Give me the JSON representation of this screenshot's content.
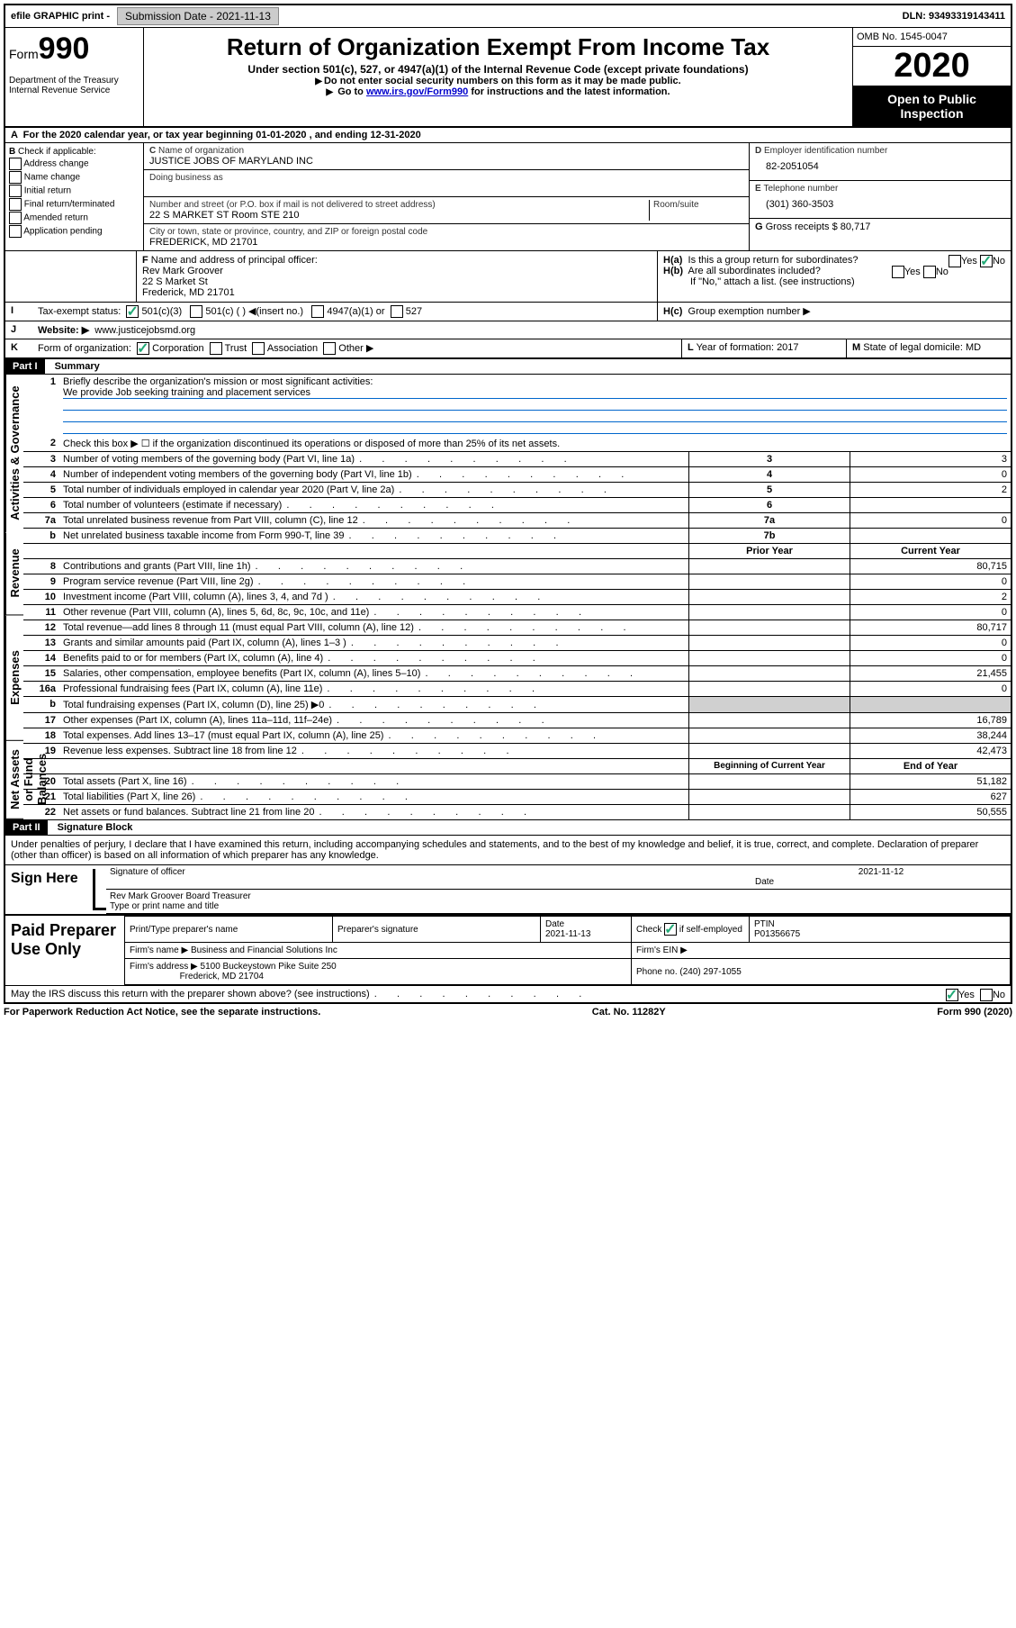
{
  "topbar": {
    "efile": "efile GRAPHIC print -",
    "submission_label": "Submission Date - 2021-11-13",
    "dln": "DLN: 93493319143411"
  },
  "header": {
    "form_label": "Form",
    "form_number": "990",
    "dept": "Department of the Treasury\nInternal Revenue Service",
    "title": "Return of Organization Exempt From Income Tax",
    "subtitle": "Under section 501(c), 527, or 4947(a)(1) of the Internal Revenue Code (except private foundations)",
    "note1": "Do not enter social security numbers on this form as it may be made public.",
    "note2_pre": "Go to ",
    "note2_link": "www.irs.gov/Form990",
    "note2_post": " for instructions and the latest information.",
    "omb": "OMB No. 1545-0047",
    "year": "2020",
    "inspect": "Open to Public Inspection"
  },
  "A": {
    "text": "For the 2020 calendar year, or tax year beginning 01-01-2020    , and ending 12-31-2020"
  },
  "B": {
    "label": "Check if applicable:",
    "items": [
      "Address change",
      "Name change",
      "Initial return",
      "Final return/terminated",
      "Amended return",
      "Application pending"
    ]
  },
  "C": {
    "name_label": "Name of organization",
    "name": "JUSTICE JOBS OF MARYLAND INC",
    "dba_label": "Doing business as",
    "addr_label": "Number and street (or P.O. box if mail is not delivered to street address)",
    "room_label": "Room/suite",
    "addr": "22 S MARKET ST Room STE 210",
    "city_label": "City or town, state or province, country, and ZIP or foreign postal code",
    "city": "FREDERICK, MD  21701"
  },
  "D": {
    "label": "Employer identification number",
    "value": "82-2051054"
  },
  "E": {
    "label": "Telephone number",
    "value": "(301) 360-3503"
  },
  "G": {
    "label": "Gross receipts $",
    "value": "80,717"
  },
  "F": {
    "label": "Name and address of principal officer:",
    "name": "Rev Mark Groover",
    "addr1": "22 S Market St",
    "addr2": "Frederick, MD  21701"
  },
  "H": {
    "a": "Is this a group return for subordinates?",
    "b": "Are all subordinates included?",
    "b_note": "If \"No,\" attach a list. (see instructions)",
    "c": "Group exemption number ▶"
  },
  "I": {
    "label": "Tax-exempt status:",
    "opts": [
      "501(c)(3)",
      "501(c) (  ) ◀(insert no.)",
      "4947(a)(1) or",
      "527"
    ]
  },
  "J": {
    "label": "Website: ▶",
    "value": "www.justicejobsmd.org"
  },
  "K": {
    "label": "Form of organization:",
    "opts": [
      "Corporation",
      "Trust",
      "Association",
      "Other ▶"
    ]
  },
  "L": {
    "label": "Year of formation:",
    "value": "2017"
  },
  "M": {
    "label": "State of legal domicile:",
    "value": "MD"
  },
  "part1": {
    "header": "Part I",
    "title": "Summary",
    "line1_label": "Briefly describe the organization's mission or most significant activities:",
    "line1_value": "We provide Job seeking training and placement services",
    "line2": "Check this box ▶ ☐  if the organization discontinued its operations or disposed of more than 25% of its net assets.",
    "lines_gov": [
      {
        "n": "3",
        "t": "Number of voting members of the governing body (Part VI, line 1a)",
        "k": "3",
        "v": "3"
      },
      {
        "n": "4",
        "t": "Number of independent voting members of the governing body (Part VI, line 1b)",
        "k": "4",
        "v": "0"
      },
      {
        "n": "5",
        "t": "Total number of individuals employed in calendar year 2020 (Part V, line 2a)",
        "k": "5",
        "v": "2"
      },
      {
        "n": "6",
        "t": "Total number of volunteers (estimate if necessary)",
        "k": "6",
        "v": ""
      },
      {
        "n": "7a",
        "t": "Total unrelated business revenue from Part VIII, column (C), line 12",
        "k": "7a",
        "v": "0"
      },
      {
        "n": "b",
        "t": "Net unrelated business taxable income from Form 990-T, line 39",
        "k": "7b",
        "v": ""
      }
    ],
    "col_prior": "Prior Year",
    "col_current": "Current Year",
    "lines_rev": [
      {
        "n": "8",
        "t": "Contributions and grants (Part VIII, line 1h)",
        "p": "",
        "c": "80,715"
      },
      {
        "n": "9",
        "t": "Program service revenue (Part VIII, line 2g)",
        "p": "",
        "c": "0"
      },
      {
        "n": "10",
        "t": "Investment income (Part VIII, column (A), lines 3, 4, and 7d )",
        "p": "",
        "c": "2"
      },
      {
        "n": "11",
        "t": "Other revenue (Part VIII, column (A), lines 5, 6d, 8c, 9c, 10c, and 11e)",
        "p": "",
        "c": "0"
      },
      {
        "n": "12",
        "t": "Total revenue—add lines 8 through 11 (must equal Part VIII, column (A), line 12)",
        "p": "",
        "c": "80,717"
      }
    ],
    "lines_exp": [
      {
        "n": "13",
        "t": "Grants and similar amounts paid (Part IX, column (A), lines 1–3 )",
        "p": "",
        "c": "0"
      },
      {
        "n": "14",
        "t": "Benefits paid to or for members (Part IX, column (A), line 4)",
        "p": "",
        "c": "0"
      },
      {
        "n": "15",
        "t": "Salaries, other compensation, employee benefits (Part IX, column (A), lines 5–10)",
        "p": "",
        "c": "21,455"
      },
      {
        "n": "16a",
        "t": "Professional fundraising fees (Part IX, column (A), line 11e)",
        "p": "",
        "c": "0"
      },
      {
        "n": "b",
        "t": "Total fundraising expenses (Part IX, column (D), line 25) ▶0",
        "p": "shade",
        "c": "shade"
      },
      {
        "n": "17",
        "t": "Other expenses (Part IX, column (A), lines 11a–11d, 11f–24e)",
        "p": "",
        "c": "16,789"
      },
      {
        "n": "18",
        "t": "Total expenses. Add lines 13–17 (must equal Part IX, column (A), line 25)",
        "p": "",
        "c": "38,244"
      },
      {
        "n": "19",
        "t": "Revenue less expenses. Subtract line 18 from line 12",
        "p": "",
        "c": "42,473"
      }
    ],
    "col_begin": "Beginning of Current Year",
    "col_end": "End of Year",
    "lines_net": [
      {
        "n": "20",
        "t": "Total assets (Part X, line 16)",
        "p": "",
        "c": "51,182"
      },
      {
        "n": "21",
        "t": "Total liabilities (Part X, line 26)",
        "p": "",
        "c": "627"
      },
      {
        "n": "22",
        "t": "Net assets or fund balances. Subtract line 21 from line 20",
        "p": "",
        "c": "50,555"
      }
    ],
    "vlabels": {
      "gov": "Activities & Governance",
      "rev": "Revenue",
      "exp": "Expenses",
      "net": "Net Assets or Fund Balances"
    }
  },
  "part2": {
    "header": "Part II",
    "title": "Signature Block",
    "penalty": "Under penalties of perjury, I declare that I have examined this return, including accompanying schedules and statements, and to the best of my knowledge and belief, it is true, correct, and complete. Declaration of preparer (other than officer) is based on all information of which preparer has any knowledge."
  },
  "sign": {
    "label": "Sign Here",
    "sig_label": "Signature of officer",
    "date_label": "Date",
    "date": "2021-11-12",
    "name": "Rev Mark Groover  Board Treasurer",
    "name_label": "Type or print name and title"
  },
  "paid": {
    "label": "Paid Preparer Use Only",
    "h_name": "Print/Type preparer's name",
    "h_sig": "Preparer's signature",
    "h_date": "Date",
    "date": "2021-11-13",
    "h_self": "Check ☑ if self-employed",
    "h_ptin": "PTIN",
    "ptin": "P01356675",
    "firm_label": "Firm's name    ▶",
    "firm": "Business and Financial Solutions Inc",
    "ein_label": "Firm's EIN ▶",
    "addr_label": "Firm's address ▶",
    "addr1": "5100 Buckeystown Pike Suite 250",
    "addr2": "Frederick, MD  21704",
    "phone_label": "Phone no.",
    "phone": "(240) 297-1055"
  },
  "discuss": {
    "text": "May the IRS discuss this return with the preparer shown above? (see instructions)"
  },
  "footer": {
    "left": "For Paperwork Reduction Act Notice, see the separate instructions.",
    "mid": "Cat. No. 11282Y",
    "right": "Form 990 (2020)"
  }
}
